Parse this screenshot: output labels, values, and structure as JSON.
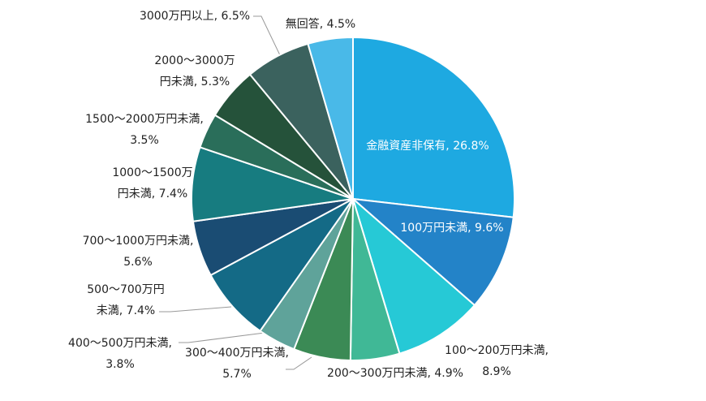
{
  "chart_data": {
    "type": "pie",
    "categories": [
      "金融資産非保有",
      "100万円未満",
      "100～200万円未満",
      "200～300万円未満",
      "300～400万円未満",
      "400～500万円未満",
      "500～700万円未満",
      "700～1000万円未満",
      "1000～1500万円未満",
      "1500～2000万円未満",
      "2000～3000万円未満",
      "3000万円以上",
      "無回答"
    ],
    "values": [
      26.8,
      9.6,
      8.9,
      4.9,
      5.7,
      3.8,
      7.4,
      5.6,
      7.4,
      3.5,
      5.3,
      6.5,
      4.5
    ],
    "value_labels": [
      "26.8%",
      "9.6%",
      "8.9%",
      "4.9%",
      "5.7%",
      "3.8%",
      "7.4%",
      "5.6%",
      "7.4%",
      "3.5%",
      "5.3%",
      "6.5%",
      "4.5%"
    ],
    "label_separator": ", ",
    "colors": [
      "#1ea9e1",
      "#2383c8",
      "#26c9d6",
      "#40b896",
      "#3b8a55",
      "#5fa39a",
      "#146a86",
      "#1a4c73",
      "#177c80",
      "#2a6e5a",
      "#25523a",
      "#3b625e",
      "#49b9e8"
    ]
  }
}
